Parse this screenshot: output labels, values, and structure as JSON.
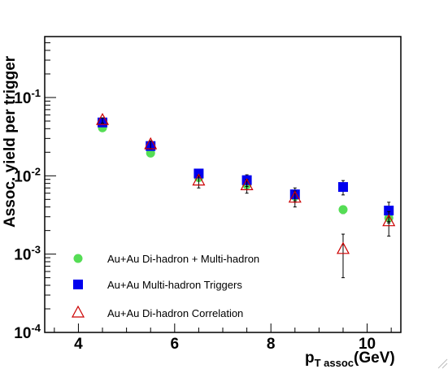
{
  "chart_data": {
    "type": "scatter",
    "xlabel": {
      "main": "p",
      "sub": "T assoc",
      "unit": "(GeV)"
    },
    "ylabel": "Assoc. yield per trigger",
    "xlim": [
      3.3,
      10.7
    ],
    "ylim": [
      0.0001,
      0.6
    ],
    "yscale": "log",
    "x_ticks": [
      {
        "value": 4,
        "label": "4"
      },
      {
        "value": 6,
        "label": "6"
      },
      {
        "value": 8,
        "label": "8"
      },
      {
        "value": 10,
        "label": "10"
      }
    ],
    "y_ticks": [
      {
        "value": 0.0001,
        "mantissa": "10",
        "exp": "-4"
      },
      {
        "value": 0.001,
        "mantissa": "10",
        "exp": "-3"
      },
      {
        "value": 0.01,
        "mantissa": "10",
        "exp": "-2"
      },
      {
        "value": 0.1,
        "mantissa": "10",
        "exp": "-1"
      }
    ],
    "legend_position": "bottom-left",
    "series": [
      {
        "name": "Au+Au Di-hadron + Multi-hadron",
        "marker": "circle",
        "color": "#55dd55",
        "points": [
          {
            "x": 4.5,
            "y": 0.041,
            "err": 0.003
          },
          {
            "x": 5.5,
            "y": 0.0195,
            "err": 0.0015
          },
          {
            "x": 6.5,
            "y": 0.0095,
            "err": 0.0008
          },
          {
            "x": 7.5,
            "y": 0.0077,
            "err": 0.0007
          },
          {
            "x": 8.5,
            "y": 0.0055,
            "err": 0.0007
          },
          {
            "x": 9.5,
            "y": 0.0037,
            "err": 0.0004
          },
          {
            "x": 10.45,
            "y": 0.0029,
            "err": 0.0004
          }
        ]
      },
      {
        "name": "Au+Au Multi-hadron Triggers",
        "marker": "square",
        "color": "#0000ee",
        "points": [
          {
            "x": 4.5,
            "y": 0.048,
            "err": 0.004
          },
          {
            "x": 5.5,
            "y": 0.024,
            "err": 0.002
          },
          {
            "x": 6.5,
            "y": 0.0107,
            "err": 0.0012
          },
          {
            "x": 7.5,
            "y": 0.0088,
            "err": 0.0015
          },
          {
            "x": 8.5,
            "y": 0.0058,
            "err": 0.0012
          },
          {
            "x": 9.5,
            "y": 0.0072,
            "err": 0.0015
          },
          {
            "x": 10.45,
            "y": 0.0036,
            "err": 0.001
          }
        ]
      },
      {
        "name": "Au+Au Di-hadron Correlation",
        "marker": "triangle",
        "color": "#cc0000",
        "points": [
          {
            "x": 4.5,
            "y": 0.051,
            "err": 0.004
          },
          {
            "x": 5.5,
            "y": 0.025,
            "err": 0.003
          },
          {
            "x": 6.5,
            "y": 0.0086,
            "err": 0.0016
          },
          {
            "x": 7.5,
            "y": 0.0075,
            "err": 0.0015
          },
          {
            "x": 8.5,
            "y": 0.0052,
            "err": 0.0012
          },
          {
            "x": 9.5,
            "y": 0.00115,
            "err": 0.00065
          },
          {
            "x": 10.45,
            "y": 0.0026,
            "err": 0.0009
          }
        ]
      }
    ]
  }
}
